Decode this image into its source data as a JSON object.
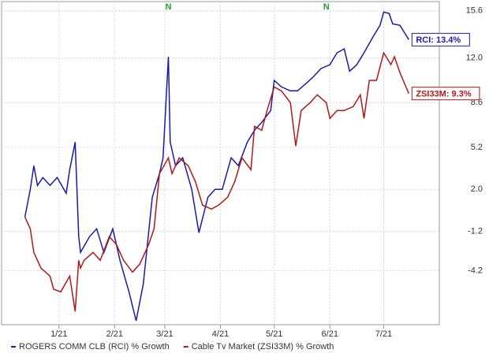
{
  "chart_data": {
    "type": "line",
    "x": [
      -19,
      -16,
      -14,
      -12,
      -9,
      -5,
      -1,
      4,
      6,
      9,
      11,
      12,
      17,
      21,
      25,
      30,
      34,
      39,
      43,
      47,
      52,
      56,
      58,
      61,
      62,
      65,
      69,
      74,
      78,
      83,
      87,
      91,
      96,
      100,
      105,
      109,
      113,
      118,
      120,
      124,
      129,
      133,
      138,
      142,
      146,
      151,
      155,
      159,
      162,
      166,
      170,
      175,
      179,
      181,
      184,
      186,
      190,
      195
    ],
    "series": [
      {
        "name": "ROGERS COMM CLB (RCI) % Growth",
        "color": "#1a1aa8",
        "end_label": "RCI: 13.4%",
        "x": [
          -19,
          -16,
          -14,
          -12,
          -9,
          -5,
          -1,
          4,
          6,
          9,
          11,
          12,
          17,
          21,
          25,
          30,
          34,
          39,
          43,
          47,
          52,
          56,
          58,
          61,
          62,
          65,
          69,
          74,
          78,
          83,
          87,
          91,
          96,
          100,
          105,
          109,
          113,
          118,
          120,
          124,
          129,
          133,
          138,
          142,
          146,
          151,
          155,
          159,
          162,
          166,
          170,
          175,
          179,
          181,
          184,
          186,
          190,
          195
        ],
        "values": [
          -0.1,
          2.0,
          3.8,
          2.3,
          2.9,
          2.3,
          2.9,
          1.7,
          3.5,
          5.6,
          -1.6,
          -2.8,
          -1.6,
          -1.0,
          -2.8,
          -1.0,
          -3.4,
          -5.8,
          -8.0,
          -5.2,
          1.4,
          3.2,
          4.4,
          12.1,
          5.6,
          3.8,
          4.4,
          2.0,
          -1.3,
          1.4,
          2.0,
          2.0,
          4.4,
          3.8,
          5.6,
          6.5,
          7.1,
          8.0,
          10.3,
          9.8,
          9.5,
          9.5,
          10.1,
          10.6,
          11.2,
          11.5,
          12.4,
          12.7,
          11.0,
          11.5,
          12.4,
          13.6,
          14.5,
          15.5,
          15.4,
          14.6,
          14.5,
          13.4
        ]
      },
      {
        "name": "Cable Tv Market (ZSI33M) % Growth",
        "color": "#b01818",
        "end_label": "ZSI33M: 9.3%",
        "x": [
          -19,
          -16,
          -14,
          -10,
          -5,
          -3,
          1,
          6,
          9,
          11,
          12,
          14,
          19,
          23,
          28,
          32,
          36,
          41,
          45,
          50,
          53,
          56,
          61,
          63,
          67,
          72,
          76,
          80,
          85,
          89,
          94,
          98,
          102,
          107,
          109,
          113,
          116,
          120,
          124,
          129,
          132,
          135,
          140,
          144,
          149,
          151,
          155,
          159,
          164,
          168,
          170,
          173,
          177,
          181,
          185,
          187,
          190,
          195
        ],
        "values": [
          -0.1,
          -1.0,
          -2.8,
          -4.0,
          -4.6,
          -5.6,
          -5.8,
          -4.6,
          -7.3,
          -3.4,
          -4.0,
          -3.4,
          -2.8,
          -3.4,
          -1.6,
          -2.2,
          -3.4,
          -4.3,
          -3.7,
          -2.2,
          -1.0,
          3.2,
          4.4,
          3.2,
          4.4,
          3.8,
          2.6,
          0.8,
          0.5,
          0.8,
          1.4,
          2.6,
          4.4,
          3.5,
          6.8,
          6.5,
          8.0,
          9.8,
          9.5,
          8.6,
          5.3,
          8.0,
          8.6,
          9.2,
          8.6,
          7.4,
          8.0,
          8.0,
          8.3,
          9.2,
          7.4,
          10.3,
          10.3,
          12.4,
          11.5,
          12.1,
          10.9,
          9.3
        ]
      }
    ],
    "xlim": [
      -32,
      212
    ],
    "xticks": [
      {
        "value": 0,
        "label": "1/21"
      },
      {
        "value": 31,
        "label": "2/21"
      },
      {
        "value": 59,
        "label": "3/21"
      },
      {
        "value": 90,
        "label": "4/21"
      },
      {
        "value": 120,
        "label": "5/21"
      },
      {
        "value": 151,
        "label": "6/21"
      },
      {
        "value": 181,
        "label": "7/21"
      }
    ],
    "ylim": [
      -8.3,
      16.3
    ],
    "yticks": [
      15.6,
      {
        "value": 12,
        "label": "12.0"
      },
      8.6,
      5.2,
      {
        "value": 2,
        "label": "2.0"
      },
      -1.2,
      -4.2
    ],
    "annotations": [
      {
        "text": "N",
        "x": 61,
        "color": "#2a9a2a"
      },
      {
        "text": "N",
        "x": 149,
        "color": "#2a9a2a"
      }
    ],
    "grid": true
  }
}
